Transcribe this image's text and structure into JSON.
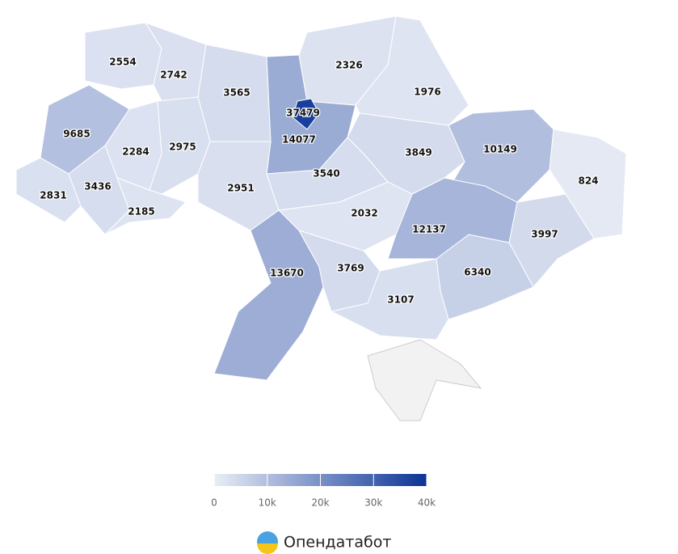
{
  "chart_data": {
    "type": "choropleth",
    "regions": [
      {
        "value": 2554
      },
      {
        "value": 2742
      },
      {
        "value": 3565
      },
      {
        "value": 14077
      },
      {
        "value": 37479
      },
      {
        "value": 2326
      },
      {
        "value": 1976
      },
      {
        "value": 9685
      },
      {
        "value": 2284
      },
      {
        "value": 2975
      },
      {
        "value": 2951
      },
      {
        "value": 3540
      },
      {
        "value": 3849
      },
      {
        "value": 10149
      },
      {
        "value": 824
      },
      {
        "value": 2831
      },
      {
        "value": 3436
      },
      {
        "value": 2185
      },
      {
        "value": 2032
      },
      {
        "value": 12137
      },
      {
        "value": 3997
      },
      {
        "value": 13670
      },
      {
        "value": 3769
      },
      {
        "value": 6340
      },
      {
        "value": 3107
      }
    ],
    "colorscale": {
      "range": [
        0,
        40000
      ],
      "colors": [
        "#e9edf6",
        "#0b3396"
      ],
      "ticks": [
        0,
        {
          "value": 10000,
          "label": "10k"
        },
        {
          "value": 20000,
          "label": "20k"
        },
        {
          "value": 30000,
          "label": "30k"
        },
        {
          "value": 40000,
          "label": "40k"
        }
      ]
    },
    "no_data_color": "#f2f2f2"
  },
  "footer": {
    "logo": "Опендатабот"
  }
}
